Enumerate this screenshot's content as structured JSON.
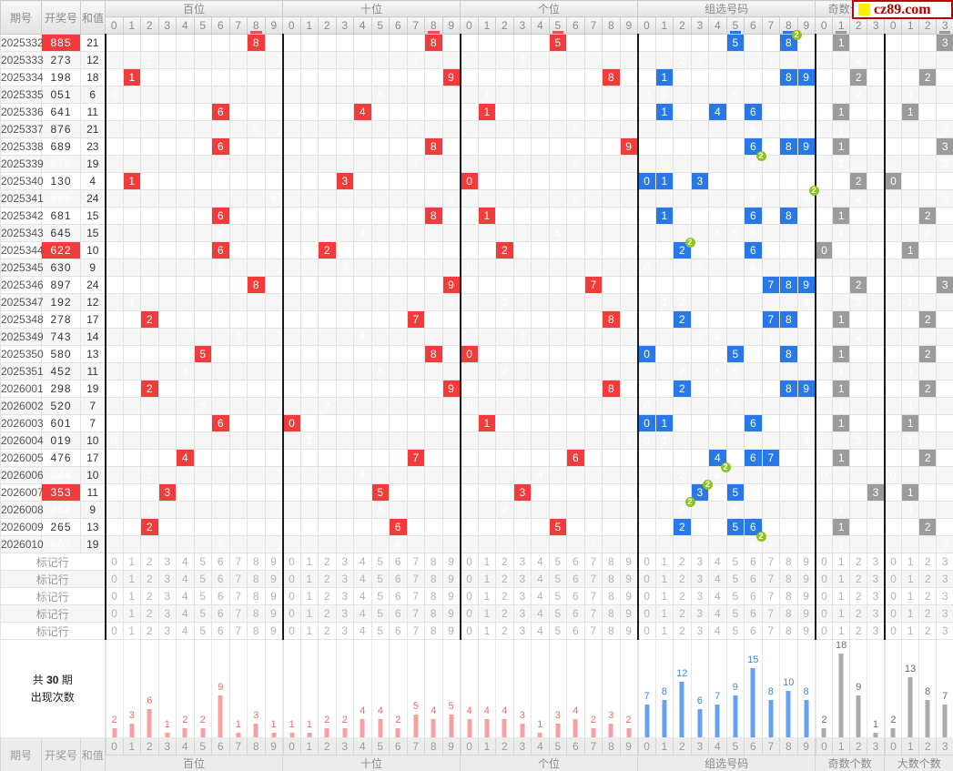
{
  "brand": {
    "logo_text": "cz89.com",
    "logo_border_color": "#c00000",
    "logo_square_color": "#ffee00",
    "logo_text_color": "#b40000"
  },
  "header": {
    "left_columns": [
      "期号",
      "开奖号",
      "和值"
    ],
    "sections": [
      {
        "label": "百位",
        "cols": [
          "0",
          "1",
          "2",
          "3",
          "4",
          "5",
          "6",
          "7",
          "8",
          "9"
        ]
      },
      {
        "label": "十位",
        "cols": [
          "0",
          "1",
          "2",
          "3",
          "4",
          "5",
          "6",
          "7",
          "8",
          "9"
        ]
      },
      {
        "label": "个位",
        "cols": [
          "0",
          "1",
          "2",
          "3",
          "4",
          "5",
          "6",
          "7",
          "8",
          "9"
        ]
      },
      {
        "label": "组选号码",
        "cols": [
          "0",
          "1",
          "2",
          "3",
          "4",
          "5",
          "6",
          "7",
          "8",
          "9"
        ]
      },
      {
        "label": "奇数个数",
        "cols": [
          "0",
          "1",
          "2",
          "3"
        ]
      },
      {
        "label": "大数个数",
        "cols": [
          "0",
          "1",
          "2",
          "3"
        ]
      }
    ]
  },
  "footer": {
    "left_columns": [
      "期号",
      "开奖号",
      "和值"
    ],
    "section_labels": [
      "百位",
      "十位",
      "个位",
      "组选号码",
      "奇数个数",
      "大数个数"
    ]
  },
  "mark_row_label": "标记行",
  "mark_rows": 5,
  "stats_label": {
    "prefix": "共",
    "count": "30",
    "suffix": "期",
    "line2": "出现次数"
  },
  "rows": [
    {
      "issue": "2025332",
      "num": "885",
      "sum": 21
    },
    {
      "issue": "2025333",
      "num": "273",
      "sum": 12
    },
    {
      "issue": "2025334",
      "num": "198",
      "sum": 18
    },
    {
      "issue": "2025335",
      "num": "051",
      "sum": 6
    },
    {
      "issue": "2025336",
      "num": "641",
      "sum": 11
    },
    {
      "issue": "2025337",
      "num": "876",
      "sum": 21
    },
    {
      "issue": "2025338",
      "num": "689",
      "sum": 23
    },
    {
      "issue": "2025339",
      "num": "676",
      "sum": 19
    },
    {
      "issue": "2025340",
      "num": "130",
      "sum": 4
    },
    {
      "issue": "2025341",
      "num": "996",
      "sum": 24
    },
    {
      "issue": "2025342",
      "num": "681",
      "sum": 15
    },
    {
      "issue": "2025343",
      "num": "645",
      "sum": 15
    },
    {
      "issue": "2025344",
      "num": "622",
      "sum": 10
    },
    {
      "issue": "2025345",
      "num": "630",
      "sum": 9
    },
    {
      "issue": "2025346",
      "num": "897",
      "sum": 24
    },
    {
      "issue": "2025347",
      "num": "192",
      "sum": 12
    },
    {
      "issue": "2025348",
      "num": "278",
      "sum": 17
    },
    {
      "issue": "2025349",
      "num": "743",
      "sum": 14
    },
    {
      "issue": "2025350",
      "num": "580",
      "sum": 13
    },
    {
      "issue": "2025351",
      "num": "452",
      "sum": 11
    },
    {
      "issue": "2026001",
      "num": "298",
      "sum": 19
    },
    {
      "issue": "2026002",
      "num": "520",
      "sum": 7
    },
    {
      "issue": "2026003",
      "num": "601",
      "sum": 7
    },
    {
      "issue": "2026004",
      "num": "019",
      "sum": 10
    },
    {
      "issue": "2026005",
      "num": "476",
      "sum": 17
    },
    {
      "issue": "2026006",
      "num": "244",
      "sum": 10
    },
    {
      "issue": "2026007",
      "num": "353",
      "sum": 11
    },
    {
      "issue": "2026008",
      "num": "252",
      "sum": 9
    },
    {
      "issue": "2026009",
      "num": "265",
      "sum": 13
    },
    {
      "issue": "2026010",
      "num": "667",
      "sum": 19
    }
  ],
  "chart_data": {
    "type": "bar",
    "title": "共30期 出现次数",
    "groups": [
      {
        "name": "百位",
        "color_key": "red",
        "categories": [
          "0",
          "1",
          "2",
          "3",
          "4",
          "5",
          "6",
          "7",
          "8",
          "9"
        ],
        "values": [
          2,
          3,
          6,
          1,
          2,
          2,
          9,
          1,
          3,
          1
        ]
      },
      {
        "name": "十位",
        "color_key": "red",
        "categories": [
          "0",
          "1",
          "2",
          "3",
          "4",
          "5",
          "6",
          "7",
          "8",
          "9"
        ],
        "values": [
          1,
          1,
          2,
          2,
          4,
          4,
          2,
          5,
          4,
          5
        ]
      },
      {
        "name": "个位",
        "color_key": "red",
        "categories": [
          "0",
          "1",
          "2",
          "3",
          "4",
          "5",
          "6",
          "7",
          "8",
          "9"
        ],
        "values": [
          4,
          4,
          4,
          3,
          1,
          3,
          4,
          2,
          3,
          2
        ]
      },
      {
        "name": "组选号码",
        "color_key": "blue",
        "categories": [
          "0",
          "1",
          "2",
          "3",
          "4",
          "5",
          "6",
          "7",
          "8",
          "9"
        ],
        "values": [
          7,
          8,
          12,
          6,
          7,
          9,
          15,
          8,
          10,
          8
        ]
      },
      {
        "name": "奇数个数",
        "color_key": "gray",
        "categories": [
          "0",
          "1",
          "2",
          "3"
        ],
        "values": [
          2,
          18,
          9,
          1
        ]
      },
      {
        "name": "大数个数",
        "color_key": "gray",
        "categories": [
          "0",
          "1",
          "2",
          "3"
        ],
        "values": [
          2,
          13,
          8,
          7
        ]
      }
    ],
    "ylim": [
      0,
      18
    ],
    "grid": false,
    "value_labels": true
  },
  "colors": {
    "cell_red": "#f23b3b",
    "cell_blue": "#2878e8",
    "cell_gray": "#9b9b9b",
    "badge_green": "#8cc41e",
    "underline": {
      "red": "#f05050",
      "blue": "#2878e8",
      "gray": "#9a9a9a"
    },
    "bars": {
      "red": {
        "bar": "#f6a0a0",
        "label": "#ef6a6a"
      },
      "blue": {
        "bar": "#64a2f0",
        "label": "#3f86e8"
      },
      "gray": {
        "bar": "#ababab",
        "label": "#6d6d6d"
      }
    }
  }
}
